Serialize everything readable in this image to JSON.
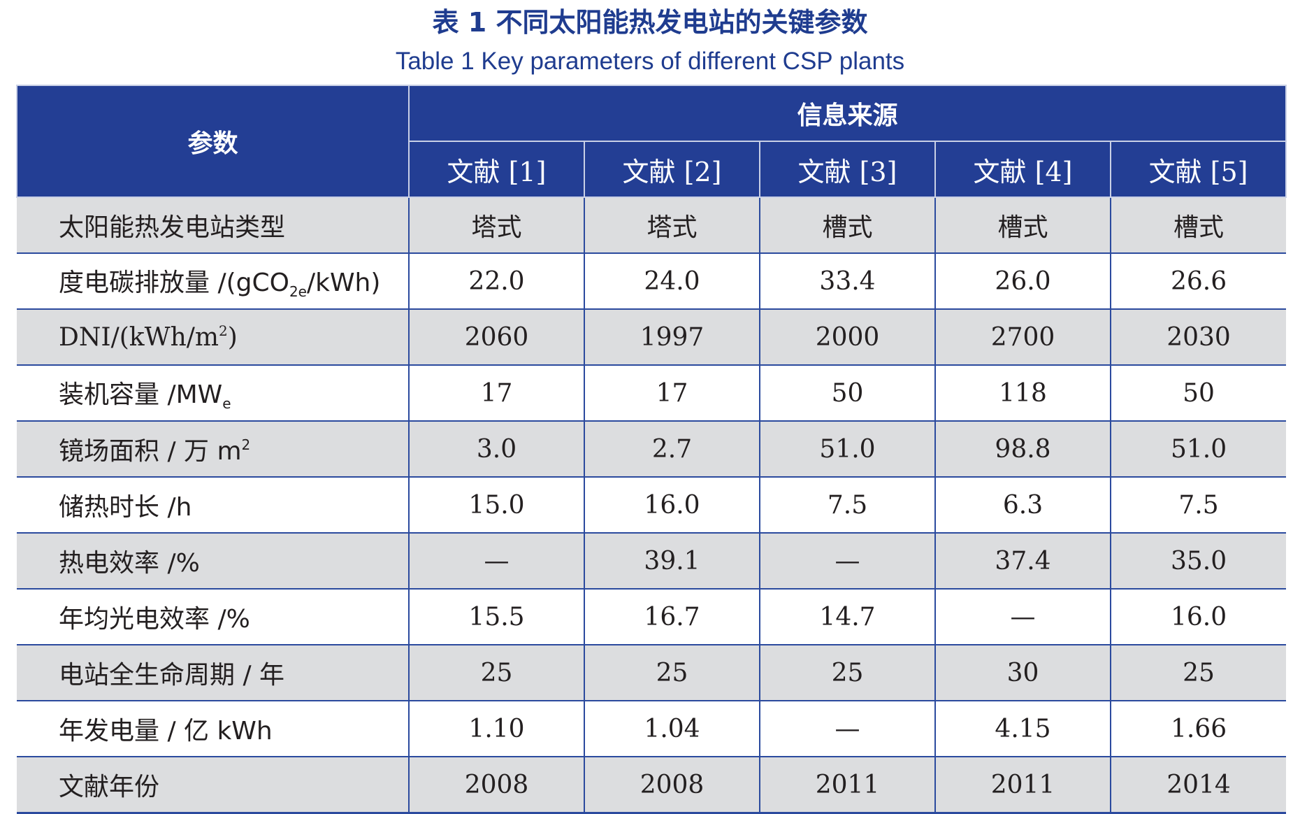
{
  "title": {
    "cn": "表 1  不同太阳能热发电站的关键参数",
    "en": "Table 1  Key parameters of different CSP plants"
  },
  "header": {
    "param": "参数",
    "source": "信息来源",
    "refs": [
      "文献 [1]",
      "文献 [2]",
      "文献 [3]",
      "文献 [4]",
      "文献 [5]"
    ]
  },
  "rows": [
    {
      "label": "太阳能热发电站类型",
      "values": [
        "塔式",
        "塔式",
        "槽式",
        "槽式",
        "槽式"
      ]
    },
    {
      "label_main": "度电碳排放量 /(gCO",
      "label_sub": "2e",
      "label_tail": "/kWh)",
      "values": [
        "22.0",
        "24.0",
        "33.4",
        "26.0",
        "26.6"
      ]
    },
    {
      "label_main": "DNI/(kWh/m",
      "label_sup": "2",
      "label_tail": ")",
      "values": [
        "2060",
        "1997",
        "2000",
        "2700",
        "2030"
      ]
    },
    {
      "label_main": "装机容量 /MW",
      "label_sub": "e",
      "values": [
        "17",
        "17",
        "50",
        "118",
        "50"
      ]
    },
    {
      "label_main": "镜场面积 / 万 m",
      "label_sup": "2",
      "values": [
        "3.0",
        "2.7",
        "51.0",
        "98.8",
        "51.0"
      ]
    },
    {
      "label": "储热时长 /h",
      "values": [
        "15.0",
        "16.0",
        "7.5",
        "6.3",
        "7.5"
      ]
    },
    {
      "label": "热电效率 /%",
      "values": [
        "—",
        "39.1",
        "—",
        "37.4",
        "35.0"
      ]
    },
    {
      "label": "年均光电效率 /%",
      "values": [
        "15.5",
        "16.7",
        "14.7",
        "—",
        "16.0"
      ]
    },
    {
      "label": "电站全生命周期 / 年",
      "values": [
        "25",
        "25",
        "25",
        "30",
        "25"
      ]
    },
    {
      "label": "年发电量 / 亿 kWh",
      "values": [
        "1.10",
        "1.04",
        "—",
        "4.15",
        "1.66"
      ]
    },
    {
      "label": "文献年份",
      "values": [
        "2008",
        "2008",
        "2011",
        "2011",
        "2014"
      ]
    }
  ]
}
